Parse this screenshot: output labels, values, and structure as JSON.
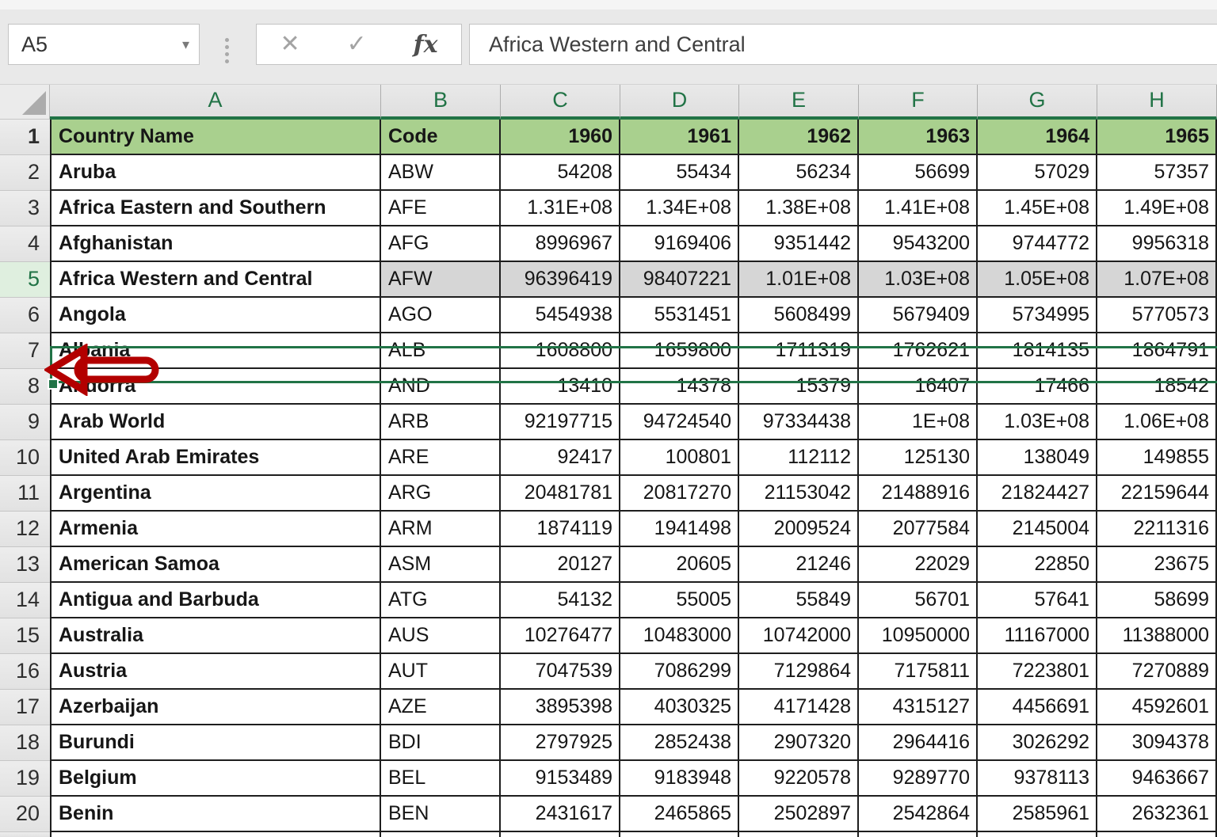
{
  "toolbar": {
    "name_box": {
      "value": "A5",
      "dropdown_icon": "▾"
    },
    "cancel_icon": "✕",
    "enter_icon": "✓",
    "function_icon": "fx",
    "formula_bar": {
      "value": "Africa Western and Central"
    }
  },
  "sheet": {
    "column_letters": [
      "A",
      "B",
      "C",
      "D",
      "E",
      "F",
      "G",
      "H"
    ],
    "selection": {
      "active_cell": "A5",
      "selected_row": 5
    },
    "partial_row_visible": true,
    "rows": [
      {
        "n": 1,
        "header": true,
        "cells": [
          "Country Name",
          "Code",
          "1960",
          "1961",
          "1962",
          "1963",
          "1964",
          "1965"
        ]
      },
      {
        "n": 2,
        "cells": [
          "Aruba",
          "ABW",
          "54208",
          "55434",
          "56234",
          "56699",
          "57029",
          "57357"
        ]
      },
      {
        "n": 3,
        "cells": [
          "Africa Eastern and Southern",
          "AFE",
          "1.31E+08",
          "1.34E+08",
          "1.38E+08",
          "1.41E+08",
          "1.45E+08",
          "1.49E+08"
        ]
      },
      {
        "n": 4,
        "cells": [
          "Afghanistan",
          "AFG",
          "8996967",
          "9169406",
          "9351442",
          "9543200",
          "9744772",
          "9956318"
        ]
      },
      {
        "n": 5,
        "cells": [
          "Africa Western and Central",
          "AFW",
          "96396419",
          "98407221",
          "1.01E+08",
          "1.03E+08",
          "1.05E+08",
          "1.07E+08"
        ]
      },
      {
        "n": 6,
        "cells": [
          "Angola",
          "AGO",
          "5454938",
          "5531451",
          "5608499",
          "5679409",
          "5734995",
          "5770573"
        ]
      },
      {
        "n": 7,
        "cells": [
          "Albania",
          "ALB",
          "1608800",
          "1659800",
          "1711319",
          "1762621",
          "1814135",
          "1864791"
        ]
      },
      {
        "n": 8,
        "cells": [
          "Andorra",
          "AND",
          "13410",
          "14378",
          "15379",
          "16407",
          "17466",
          "18542"
        ]
      },
      {
        "n": 9,
        "cells": [
          "Arab World",
          "ARB",
          "92197715",
          "94724540",
          "97334438",
          "1E+08",
          "1.03E+08",
          "1.06E+08"
        ]
      },
      {
        "n": 10,
        "cells": [
          "United Arab Emirates",
          "ARE",
          "92417",
          "100801",
          "112112",
          "125130",
          "138049",
          "149855"
        ]
      },
      {
        "n": 11,
        "cells": [
          "Argentina",
          "ARG",
          "20481781",
          "20817270",
          "21153042",
          "21488916",
          "21824427",
          "22159644"
        ]
      },
      {
        "n": 12,
        "cells": [
          "Armenia",
          "ARM",
          "1874119",
          "1941498",
          "2009524",
          "2077584",
          "2145004",
          "2211316"
        ]
      },
      {
        "n": 13,
        "cells": [
          "American Samoa",
          "ASM",
          "20127",
          "20605",
          "21246",
          "22029",
          "22850",
          "23675"
        ]
      },
      {
        "n": 14,
        "cells": [
          "Antigua and Barbuda",
          "ATG",
          "54132",
          "55005",
          "55849",
          "56701",
          "57641",
          "58699"
        ]
      },
      {
        "n": 15,
        "cells": [
          "Australia",
          "AUS",
          "10276477",
          "10483000",
          "10742000",
          "10950000",
          "11167000",
          "11388000"
        ]
      },
      {
        "n": 16,
        "cells": [
          "Austria",
          "AUT",
          "7047539",
          "7086299",
          "7129864",
          "7175811",
          "7223801",
          "7270889"
        ]
      },
      {
        "n": 17,
        "cells": [
          "Azerbaijan",
          "AZE",
          "3895398",
          "4030325",
          "4171428",
          "4315127",
          "4456691",
          "4592601"
        ]
      },
      {
        "n": 18,
        "cells": [
          "Burundi",
          "BDI",
          "2797925",
          "2852438",
          "2907320",
          "2964416",
          "3026292",
          "3094378"
        ]
      },
      {
        "n": 19,
        "cells": [
          "Belgium",
          "BEL",
          "9153489",
          "9183948",
          "9220578",
          "9289770",
          "9378113",
          "9463667"
        ]
      },
      {
        "n": 20,
        "cells": [
          "Benin",
          "BEN",
          "2431617",
          "2465865",
          "2502897",
          "2542864",
          "2585961",
          "2632361"
        ]
      }
    ]
  },
  "annotation": {
    "shape": "left-block-arrow",
    "color": "#B30000",
    "target_row": 5
  },
  "colors": {
    "header_fill": "#A9D08E",
    "selection_green": "#217346",
    "selected_cell_fill": "#D6D6D6",
    "grid_border": "#1E1E1E"
  }
}
